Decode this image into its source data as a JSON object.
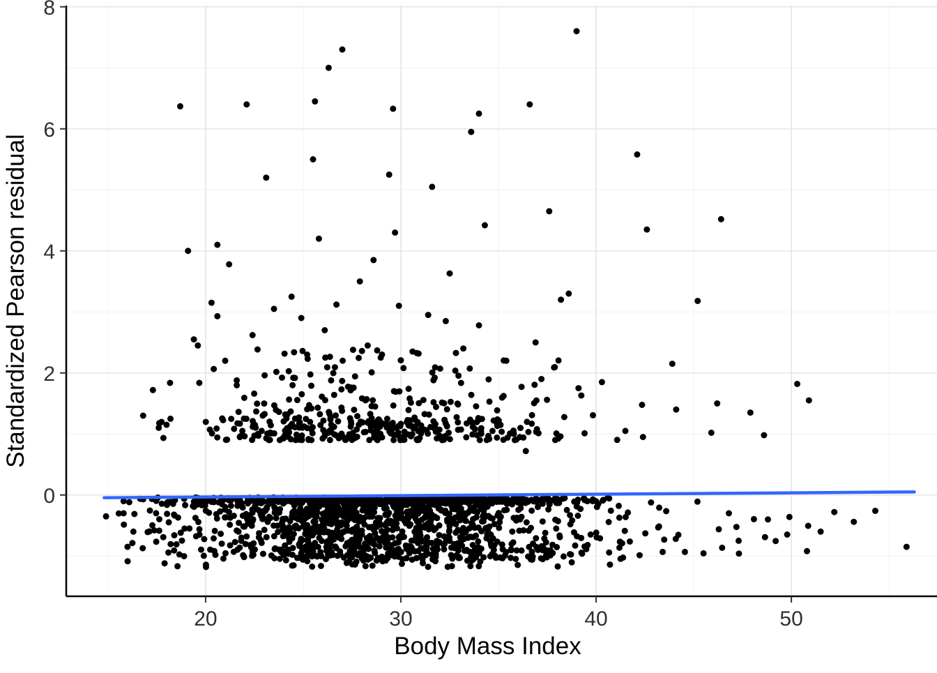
{
  "figure": {
    "background": "#ffffff"
  },
  "chart_data": {
    "type": "scatter",
    "title": "",
    "xlabel": "Body Mass Index",
    "ylabel": "Standardized Pearson residual",
    "xlim": [
      12.86,
      57.46
    ],
    "ylim": [
      -1.66,
      8.02
    ],
    "x_ticks": [
      20,
      30,
      40,
      50
    ],
    "y_ticks": [
      0,
      2,
      4,
      6,
      8
    ],
    "x_minor_ticks": [
      15,
      25,
      35,
      45,
      55
    ],
    "y_minor_ticks": [
      -1,
      1,
      3,
      5,
      7
    ],
    "grid": {
      "major_color": "#e4e4e4",
      "minor_color": "#f2f2f2",
      "show": true
    },
    "axis_line_color": "#000000",
    "tick_color": "#333333",
    "point_color": "#000000",
    "point_radius": 4.5,
    "legend": "none",
    "smooth_line": {
      "name": "loess-fit",
      "color": "#3366FF",
      "width": 4.5,
      "x": [
        14.8,
        56.3
      ],
      "y": [
        -0.045,
        0.05
      ]
    },
    "outlier_points": [
      [
        39.0,
        7.6
      ],
      [
        27.0,
        7.3
      ],
      [
        26.3,
        7.0
      ],
      [
        25.6,
        6.45
      ],
      [
        36.6,
        6.4
      ],
      [
        22.1,
        6.4
      ],
      [
        18.7,
        6.37
      ],
      [
        29.6,
        6.33
      ],
      [
        34.0,
        6.25
      ],
      [
        33.6,
        5.95
      ],
      [
        42.1,
        5.58
      ],
      [
        25.5,
        5.5
      ],
      [
        29.4,
        5.25
      ],
      [
        23.1,
        5.2
      ],
      [
        31.6,
        5.05
      ],
      [
        37.6,
        4.65
      ],
      [
        46.4,
        4.52
      ],
      [
        34.3,
        4.42
      ],
      [
        42.6,
        4.35
      ],
      [
        29.7,
        4.3
      ],
      [
        25.8,
        4.2
      ],
      [
        20.6,
        4.1
      ],
      [
        19.1,
        4.0
      ],
      [
        28.6,
        3.85
      ],
      [
        21.2,
        3.78
      ],
      [
        32.5,
        3.63
      ],
      [
        27.9,
        3.5
      ],
      [
        38.6,
        3.3
      ],
      [
        24.4,
        3.25
      ],
      [
        45.2,
        3.18
      ],
      [
        38.2,
        3.2
      ],
      [
        20.3,
        3.15
      ],
      [
        26.7,
        3.12
      ],
      [
        29.9,
        3.1
      ],
      [
        23.5,
        3.05
      ],
      [
        31.4,
        2.95
      ],
      [
        20.6,
        2.93
      ],
      [
        24.9,
        2.9
      ],
      [
        32.3,
        2.85
      ],
      [
        34.0,
        2.78
      ],
      [
        26.1,
        2.7
      ],
      [
        22.4,
        2.62
      ],
      [
        36.9,
        2.5
      ],
      [
        28.3,
        2.45
      ],
      [
        33.2,
        2.4
      ],
      [
        30.6,
        2.35
      ],
      [
        25.2,
        2.3
      ],
      [
        43.9,
        2.15
      ],
      [
        19.6,
        2.45
      ],
      [
        19.4,
        2.55
      ],
      [
        21.0,
        2.2
      ],
      [
        35.4,
        2.2
      ],
      [
        37.2,
        1.9
      ],
      [
        39.1,
        1.75
      ],
      [
        40.3,
        1.85
      ],
      [
        50.3,
        1.82
      ],
      [
        50.9,
        1.55
      ],
      [
        46.2,
        1.5
      ],
      [
        44.1,
        1.4
      ],
      [
        47.9,
        1.35
      ],
      [
        48.6,
        0.98
      ],
      [
        45.9,
        1.02
      ],
      [
        41.5,
        1.05
      ],
      [
        42.4,
        0.95
      ],
      [
        17.3,
        1.72
      ],
      [
        16.8,
        1.3
      ],
      [
        18.2,
        1.25
      ],
      [
        18.0,
        1.15
      ],
      [
        17.6,
        1.1
      ],
      [
        36.4,
        0.72
      ],
      [
        52.2,
        -0.28
      ],
      [
        53.2,
        -0.44
      ],
      [
        54.3,
        -0.26
      ],
      [
        55.9,
        -0.85
      ],
      [
        50.8,
        -0.92
      ],
      [
        49.9,
        -0.36
      ],
      [
        48.8,
        -0.4
      ],
      [
        51.5,
        -0.6
      ],
      [
        47.3,
        -0.75
      ],
      [
        46.8,
        -0.3
      ],
      [
        14.9,
        -0.35
      ],
      [
        15.8,
        -0.3
      ],
      [
        16.3,
        -0.6
      ],
      [
        16.0,
        -0.85
      ]
    ],
    "point_clusters": [
      {
        "name": "positive-residual-band",
        "n": 300,
        "x": {
          "dist": "normal",
          "mean": 28.5,
          "sd": 4.8,
          "min": 17,
          "max": 47
        },
        "y": {
          "dist": "power",
          "base": 0.9,
          "scale": 1.5,
          "power": 2.4
        }
      },
      {
        "name": "positive-residual-dense-row",
        "n": 120,
        "x": {
          "dist": "normal",
          "mean": 28.0,
          "sd": 4.5,
          "min": 17.5,
          "max": 44
        },
        "y": {
          "dist": "uniform",
          "min": 0.95,
          "max": 1.25
        }
      },
      {
        "name": "negative-residual-cloud",
        "n": 1150,
        "x": {
          "dist": "normal",
          "mean": 29.0,
          "sd": 5.0,
          "min": 15,
          "max": 48
        },
        "y": {
          "dist": "power",
          "base": -0.06,
          "scale": -1.0,
          "power": 1.6
        }
      },
      {
        "name": "near-zero-row",
        "n": 250,
        "x": {
          "dist": "normal",
          "mean": 29.0,
          "sd": 5.5,
          "min": 15,
          "max": 50
        },
        "y": {
          "dist": "uniform",
          "min": -0.12,
          "max": -0.04
        }
      },
      {
        "name": "wide-sparse-negative",
        "n": 90,
        "x": {
          "dist": "uniform",
          "min": 15,
          "max": 52
        },
        "y": {
          "dist": "uniform",
          "min": -1.0,
          "max": -0.1
        }
      },
      {
        "name": "bottom-fringe",
        "n": 90,
        "x": {
          "dist": "normal",
          "mean": 29.0,
          "sd": 5.0,
          "min": 16,
          "max": 46
        },
        "y": {
          "dist": "uniform",
          "min": -1.18,
          "max": -0.88
        }
      }
    ],
    "seed": 42
  }
}
